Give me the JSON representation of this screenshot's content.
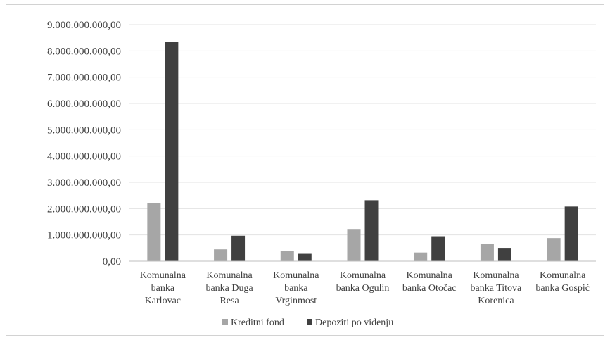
{
  "chart_data": {
    "type": "bar",
    "categories": [
      [
        "Komunalna",
        "banka",
        "Karlovac"
      ],
      [
        "Komunalna",
        "banka Duga",
        "Resa"
      ],
      [
        "Komunalna",
        "banka",
        "Vrginmost"
      ],
      [
        "Komunalna",
        "banka Ogulin"
      ],
      [
        "Komunalna",
        "banka Otočac"
      ],
      [
        "Komunalna",
        "banka Titova",
        "Korenica"
      ],
      [
        "Komunalna",
        "banka Gospić"
      ]
    ],
    "series": [
      {
        "name": "Kreditni fond",
        "color": "#a6a6a6",
        "values": [
          2200000000,
          450000000,
          400000000,
          1200000000,
          330000000,
          650000000,
          880000000
        ]
      },
      {
        "name": "Depoziti po viđenju",
        "color": "#404040",
        "values": [
          8350000000,
          970000000,
          280000000,
          2320000000,
          950000000,
          480000000,
          2080000000
        ]
      }
    ],
    "y_ticks": [
      "0,00",
      "1.000.000.000,00",
      "2.000.000.000,00",
      "3.000.000.000,00",
      "4.000.000.000,00",
      "5.000.000.000,00",
      "6.000.000.000,00",
      "7.000.000.000,00",
      "8.000.000.000,00",
      "9.000.000.000,00"
    ],
    "ylim": [
      0,
      9000000000
    ],
    "grid": true,
    "legend_position": "bottom",
    "title": "",
    "xlabel": "",
    "ylabel": ""
  }
}
